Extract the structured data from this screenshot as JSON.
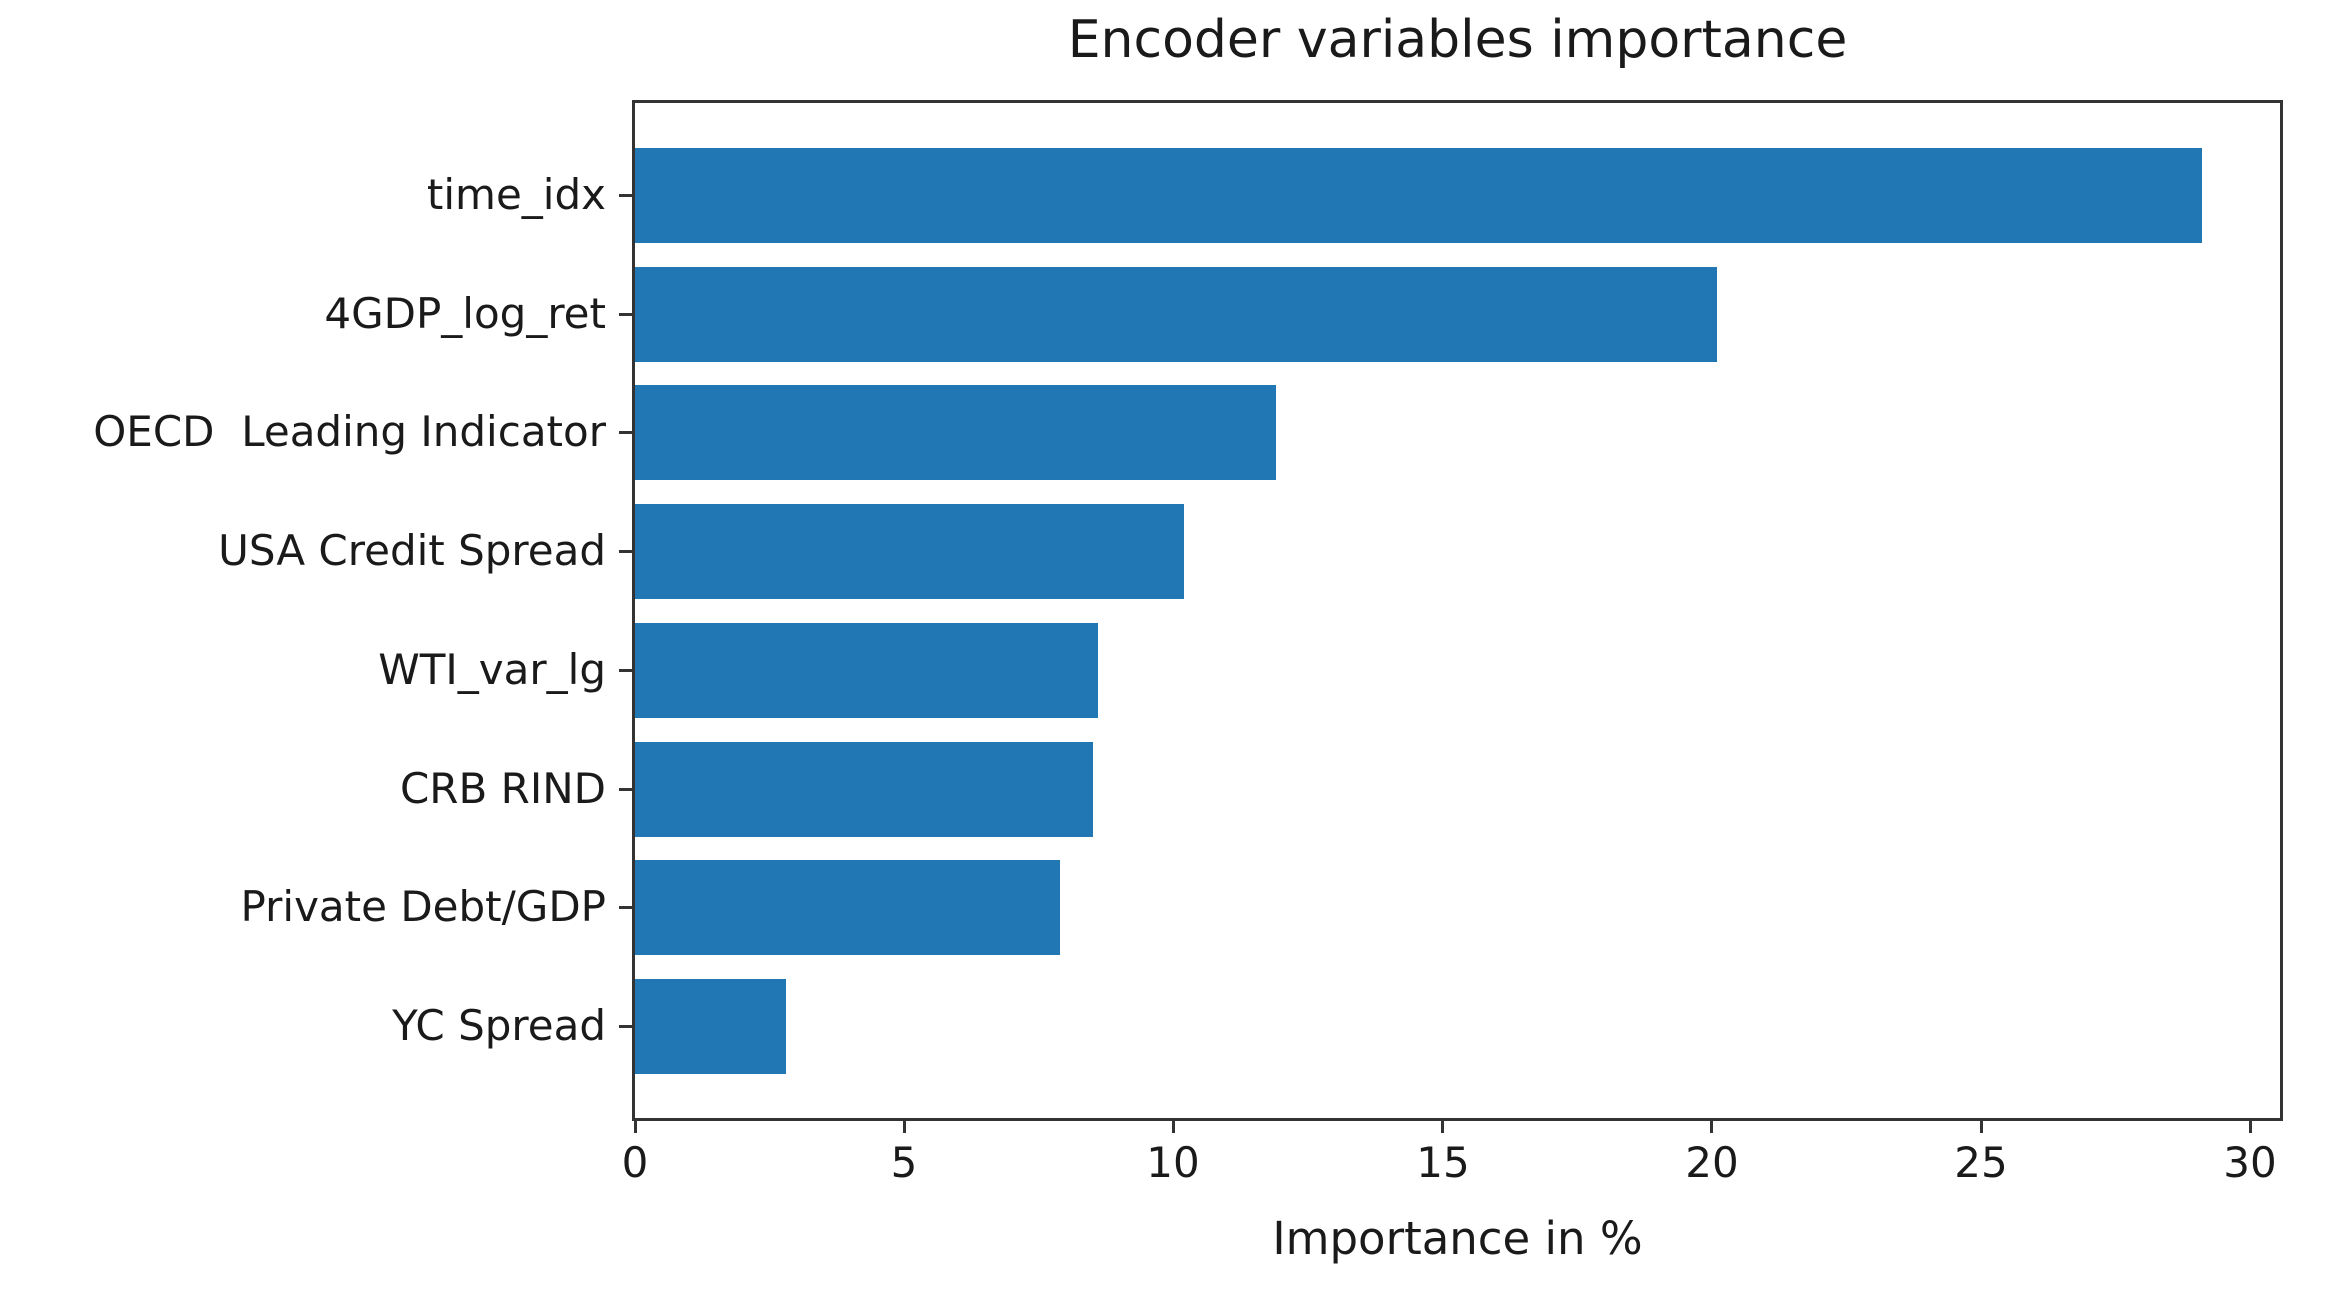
{
  "title": "Encoder variables importance",
  "chart_data": {
    "type": "bar",
    "orientation": "horizontal",
    "title": "Encoder variables importance",
    "categories": [
      "time_idx",
      "4GDP_log_ret",
      "OECD  Leading Indicator",
      "USA Credit Spread",
      "WTI_var_lg",
      "CRB RIND",
      "Private Debt/GDP",
      "YC Spread"
    ],
    "values": [
      29.1,
      20.1,
      11.9,
      10.2,
      8.6,
      8.5,
      7.9,
      2.8
    ],
    "xlabel": "Importance in %",
    "ylabel": "",
    "xlim": [
      0,
      30.55
    ],
    "xticks": [
      0,
      5,
      10,
      15,
      20,
      25,
      30
    ],
    "bar_color": "#2177b4",
    "axis_color": "#333333",
    "text_color": "#1a1a1a",
    "grid": false,
    "legend": "none"
  }
}
